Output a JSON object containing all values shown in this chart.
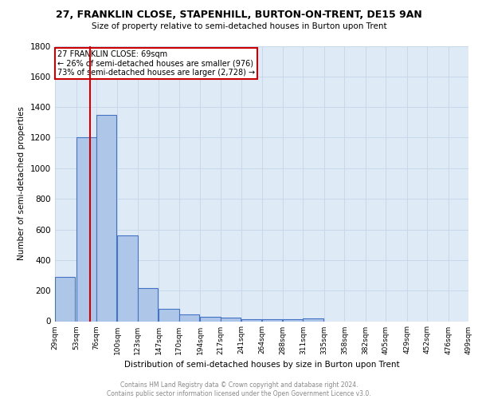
{
  "title_line1": "27, FRANKLIN CLOSE, STAPENHILL, BURTON-ON-TRENT, DE15 9AN",
  "title_line2": "Size of property relative to semi-detached houses in Burton upon Trent",
  "xlabel": "Distribution of semi-detached houses by size in Burton upon Trent",
  "ylabel": "Number of semi-detached properties",
  "footnote": "Contains HM Land Registry data © Crown copyright and database right 2024.\nContains public sector information licensed under the Open Government Licence v3.0.",
  "property_label": "27 FRANKLIN CLOSE: 69sqm",
  "annotation_line1": "← 26% of semi-detached houses are smaller (976)",
  "annotation_line2": "73% of semi-detached houses are larger (2,728) →",
  "bar_left_edges": [
    29,
    53,
    76,
    100,
    123,
    147,
    170,
    194,
    217,
    241,
    264,
    288,
    311,
    335,
    358,
    382,
    405,
    429,
    452,
    476
  ],
  "bar_heights": [
    290,
    1200,
    1350,
    560,
    215,
    80,
    45,
    30,
    25,
    15,
    15,
    15,
    20,
    0,
    0,
    0,
    0,
    0,
    0,
    0
  ],
  "bin_width": 23,
  "bar_color": "#aec6e8",
  "bar_edge_color": "#4472c4",
  "grid_color": "#c8d8e8",
  "background_color": "#deeaf6",
  "vline_color": "#cc0000",
  "vline_x": 69,
  "annotation_box_color": "#cc0000",
  "ylim": [
    0,
    1800
  ],
  "yticks": [
    0,
    200,
    400,
    600,
    800,
    1000,
    1200,
    1400,
    1600,
    1800
  ],
  "xtick_labels": [
    "29sqm",
    "53sqm",
    "76sqm",
    "100sqm",
    "123sqm",
    "147sqm",
    "170sqm",
    "194sqm",
    "217sqm",
    "241sqm",
    "264sqm",
    "288sqm",
    "311sqm",
    "335sqm",
    "358sqm",
    "382sqm",
    "405sqm",
    "429sqm",
    "452sqm",
    "476sqm",
    "499sqm"
  ],
  "xtick_positions": [
    29,
    53,
    76,
    100,
    123,
    147,
    170,
    194,
    217,
    241,
    264,
    288,
    311,
    335,
    358,
    382,
    405,
    429,
    452,
    476,
    499
  ],
  "xlim": [
    29,
    499
  ]
}
